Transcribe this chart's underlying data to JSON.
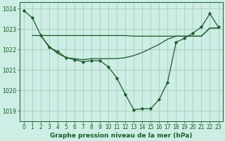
{
  "background_color": "#cceee4",
  "grid_color": "#aaccbb",
  "line_color": "#1a5c28",
  "marker_color": "#1a5c28",
  "title": "Graphe pression niveau de la mer (hPa)",
  "xlim": [
    -0.5,
    23.5
  ],
  "ylim": [
    1018.5,
    1024.3
  ],
  "yticks": [
    1019,
    1020,
    1021,
    1022,
    1023,
    1024
  ],
  "xticks": [
    0,
    1,
    2,
    3,
    4,
    5,
    6,
    7,
    8,
    9,
    10,
    11,
    12,
    13,
    14,
    15,
    16,
    17,
    18,
    19,
    20,
    21,
    22,
    23
  ],
  "series1_x": [
    0,
    1,
    2,
    3,
    4,
    5,
    6,
    7,
    8,
    9,
    10,
    11,
    12,
    13,
    14,
    15,
    16,
    17,
    18,
    19,
    20,
    21,
    22,
    23
  ],
  "series1_y": [
    1023.9,
    1023.55,
    1022.7,
    1022.1,
    1021.9,
    1021.6,
    1021.5,
    1021.4,
    1021.45,
    1021.45,
    1021.15,
    1020.6,
    1019.8,
    1019.05,
    1019.1,
    1019.1,
    1019.55,
    1020.4,
    1022.35,
    1022.55,
    1022.8,
    1023.1,
    1023.75,
    1023.1
  ],
  "series2_x": [
    1,
    2,
    3,
    4,
    5,
    6,
    7,
    8,
    9,
    10,
    11,
    12,
    13,
    14,
    15,
    16,
    17,
    18,
    19,
    20,
    21,
    22,
    23
  ],
  "series2_y": [
    1022.68,
    1022.68,
    1022.68,
    1022.68,
    1022.68,
    1022.68,
    1022.68,
    1022.68,
    1022.68,
    1022.68,
    1022.68,
    1022.68,
    1022.65,
    1022.65,
    1022.65,
    1022.65,
    1022.65,
    1022.65,
    1022.65,
    1022.65,
    1022.65,
    1023.05,
    1023.05
  ],
  "series3_x": [
    2,
    3,
    4,
    5,
    6,
    7,
    8,
    9,
    10,
    11,
    12,
    13,
    14,
    15,
    16,
    17,
    18,
    19,
    20,
    21,
    22,
    23
  ],
  "series3_y": [
    1022.68,
    1022.15,
    1021.8,
    1021.6,
    1021.55,
    1021.5,
    1021.55,
    1021.55,
    1021.55,
    1021.55,
    1021.6,
    1021.7,
    1021.85,
    1022.05,
    1022.25,
    1022.5,
    1022.65,
    1022.65,
    1022.65,
    1022.65,
    1023.05,
    1023.05
  ],
  "fig_width": 3.2,
  "fig_height": 2.0,
  "dpi": 100,
  "title_fontsize": 6.5,
  "tick_fontsize": 5.5,
  "linewidth": 0.9,
  "markersize": 2.2
}
